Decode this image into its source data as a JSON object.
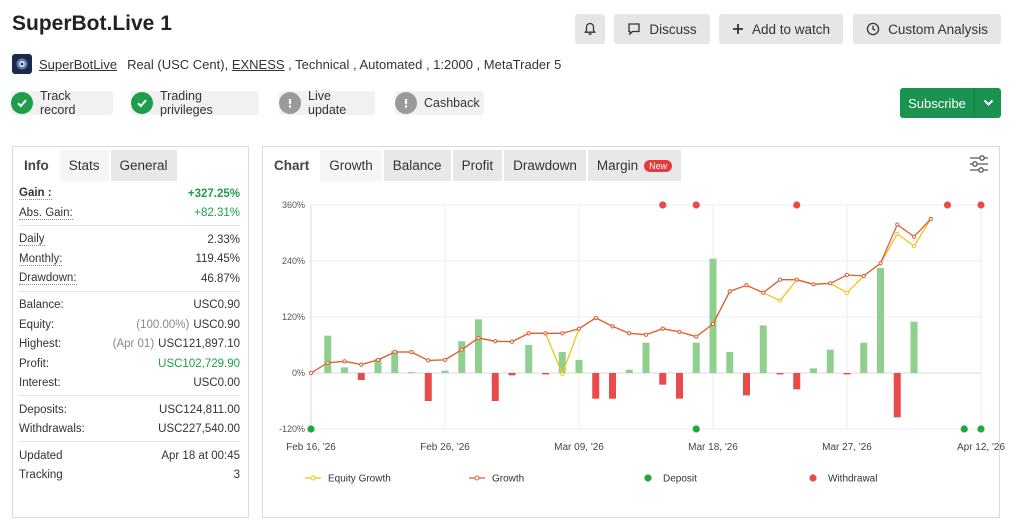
{
  "header": {
    "title": "SuperBot.Live 1",
    "discuss": "Discuss",
    "add_watch": "Add to watch",
    "custom_analysis": "Custom Analysis"
  },
  "meta": {
    "author": "SuperBotLive",
    "pre_broker": "Real (USC Cent), ",
    "broker": "EXNESS",
    "post_broker": " , Technical , Automated , 1:2000 , MetaTrader 5"
  },
  "badges": [
    "Track record",
    "Trading privileges",
    "Live update",
    "Cashback"
  ],
  "subscribe": "Subscribe",
  "left_tabs": [
    "Info",
    "Stats",
    "General"
  ],
  "stats": {
    "groups": [
      [
        {
          "k": "Gain :",
          "v": "+327.25%",
          "bold": true,
          "green": true,
          "u": true
        },
        {
          "k": "Abs. Gain:",
          "v": "+82.31%",
          "green": true,
          "u": true
        }
      ],
      [
        {
          "k": "Daily",
          "v": "2.33%",
          "u": true
        },
        {
          "k": "Monthly:",
          "v": "119.45%",
          "u": true
        },
        {
          "k": "Drawdown:",
          "v": "46.87%",
          "u": true
        }
      ],
      [
        {
          "k": "Balance:",
          "v": "USC0.90"
        },
        {
          "k": "Equity:",
          "sub": "(100.00%)",
          "v": "USC0.90"
        },
        {
          "k": "Highest:",
          "sub": "(Apr 01)",
          "v": "USC121,897.10"
        },
        {
          "k": "Profit:",
          "v": "USC102,729.90",
          "green": true
        },
        {
          "k": "Interest:",
          "v": "USC0.00"
        }
      ],
      [
        {
          "k": "Deposits:",
          "v": "USC124,811.00"
        },
        {
          "k": "Withdrawals:",
          "v": "USC227,540.00"
        }
      ],
      [
        {
          "k": "Updated",
          "v": "Apr 18 at 00:45"
        },
        {
          "k": "Tracking",
          "v": "3"
        }
      ]
    ]
  },
  "chart_tabs": {
    "label": "Chart",
    "tabs": [
      "Growth",
      "Balance",
      "Profit",
      "Drawdown",
      "Margin"
    ],
    "new_badge": "New"
  },
  "colors": {
    "growth": "#d9603b",
    "equity": "#f0c419",
    "bar_pos": "#8fd08f",
    "bar_neg": "#e94b4b",
    "deposit": "#1eaa3a",
    "withdrawal": "#e94b4b"
  },
  "chart_data": {
    "type": "line",
    "y_ticks": [
      "360%",
      "240%",
      "120%",
      "0%",
      "-120%"
    ],
    "y_tick_values": [
      360,
      240,
      120,
      0,
      -120
    ],
    "ylim": [
      -120,
      360
    ],
    "x_ticks": [
      "Feb 16, '26",
      "Feb 26, '26",
      "Mar 09, '26",
      "Mar 18, '26",
      "Mar 27, '26",
      "Apr 12, '26"
    ],
    "x_tick_pos": [
      0,
      8,
      16,
      24,
      32,
      40
    ],
    "x_range": [
      0,
      40
    ],
    "series": [
      {
        "name": "Growth",
        "values": [
          {
            "x": 0,
            "y": 0
          },
          {
            "x": 1,
            "y": 22
          },
          {
            "x": 2,
            "y": 25
          },
          {
            "x": 3,
            "y": 18
          },
          {
            "x": 4,
            "y": 28
          },
          {
            "x": 5,
            "y": 45
          },
          {
            "x": 6,
            "y": 45
          },
          {
            "x": 7,
            "y": 27
          },
          {
            "x": 8,
            "y": 28
          },
          {
            "x": 9,
            "y": 50
          },
          {
            "x": 10,
            "y": 75
          },
          {
            "x": 11,
            "y": 68
          },
          {
            "x": 12,
            "y": 67
          },
          {
            "x": 13,
            "y": 85
          },
          {
            "x": 14,
            "y": 85
          },
          {
            "x": 15,
            "y": 85
          },
          {
            "x": 16,
            "y": 95
          },
          {
            "x": 17,
            "y": 118
          },
          {
            "x": 18,
            "y": 100
          },
          {
            "x": 19,
            "y": 85
          },
          {
            "x": 20,
            "y": 82
          },
          {
            "x": 21,
            "y": 95
          },
          {
            "x": 22,
            "y": 88
          },
          {
            "x": 23,
            "y": 78
          },
          {
            "x": 24,
            "y": 105
          },
          {
            "x": 25,
            "y": 175
          },
          {
            "x": 26,
            "y": 188
          },
          {
            "x": 27,
            "y": 172
          },
          {
            "x": 28,
            "y": 200
          },
          {
            "x": 29,
            "y": 200
          },
          {
            "x": 30,
            "y": 190
          },
          {
            "x": 31,
            "y": 192
          },
          {
            "x": 32,
            "y": 210
          },
          {
            "x": 33,
            "y": 208
          },
          {
            "x": 34,
            "y": 235
          },
          {
            "x": 35,
            "y": 318
          },
          {
            "x": 36,
            "y": 292
          },
          {
            "x": 37,
            "y": 330
          }
        ]
      },
      {
        "name": "Equity Growth",
        "values": [
          {
            "x": 0,
            "y": 0
          },
          {
            "x": 1,
            "y": 22
          },
          {
            "x": 2,
            "y": 25
          },
          {
            "x": 3,
            "y": 18
          },
          {
            "x": 4,
            "y": 28
          },
          {
            "x": 5,
            "y": 45
          },
          {
            "x": 6,
            "y": 45
          },
          {
            "x": 7,
            "y": 27
          },
          {
            "x": 8,
            "y": 28
          },
          {
            "x": 9,
            "y": 50
          },
          {
            "x": 10,
            "y": 75
          },
          {
            "x": 11,
            "y": 68
          },
          {
            "x": 12,
            "y": 67
          },
          {
            "x": 13,
            "y": 85
          },
          {
            "x": 14,
            "y": 85
          },
          {
            "x": 15,
            "y": -2
          },
          {
            "x": 16,
            "y": 95
          },
          {
            "x": 17,
            "y": 118
          },
          {
            "x": 18,
            "y": 100
          },
          {
            "x": 19,
            "y": 85
          },
          {
            "x": 20,
            "y": 82
          },
          {
            "x": 21,
            "y": 95
          },
          {
            "x": 22,
            "y": 88
          },
          {
            "x": 23,
            "y": 78
          },
          {
            "x": 24,
            "y": 105
          },
          {
            "x": 25,
            "y": 175
          },
          {
            "x": 26,
            "y": 188
          },
          {
            "x": 27,
            "y": 172
          },
          {
            "x": 28,
            "y": 155
          },
          {
            "x": 29,
            "y": 200
          },
          {
            "x": 30,
            "y": 190
          },
          {
            "x": 31,
            "y": 192
          },
          {
            "x": 32,
            "y": 172
          },
          {
            "x": 33,
            "y": 208
          },
          {
            "x": 34,
            "y": 235
          },
          {
            "x": 35,
            "y": 298
          },
          {
            "x": 36,
            "y": 272
          },
          {
            "x": 37,
            "y": 330
          }
        ]
      }
    ],
    "bars": [
      {
        "x": 1,
        "y": 80
      },
      {
        "x": 2,
        "y": 12
      },
      {
        "x": 3,
        "y": -15
      },
      {
        "x": 4,
        "y": 30
      },
      {
        "x": 5,
        "y": 48
      },
      {
        "x": 6,
        "y": 2
      },
      {
        "x": 7,
        "y": -60
      },
      {
        "x": 8,
        "y": 5
      },
      {
        "x": 9,
        "y": 68
      },
      {
        "x": 10,
        "y": 115
      },
      {
        "x": 11,
        "y": -60
      },
      {
        "x": 12,
        "y": -5
      },
      {
        "x": 13,
        "y": 60
      },
      {
        "x": 14,
        "y": -3
      },
      {
        "x": 15,
        "y": 45
      },
      {
        "x": 16,
        "y": 28
      },
      {
        "x": 17,
        "y": -55
      },
      {
        "x": 18,
        "y": -55
      },
      {
        "x": 19,
        "y": 7
      },
      {
        "x": 20,
        "y": 65
      },
      {
        "x": 21,
        "y": -25
      },
      {
        "x": 22,
        "y": -55
      },
      {
        "x": 23,
        "y": 65
      },
      {
        "x": 24,
        "y": 245
      },
      {
        "x": 25,
        "y": 45
      },
      {
        "x": 26,
        "y": -48
      },
      {
        "x": 27,
        "y": 102
      },
      {
        "x": 28,
        "y": -3
      },
      {
        "x": 29,
        "y": -35
      },
      {
        "x": 30,
        "y": 10
      },
      {
        "x": 31,
        "y": 50
      },
      {
        "x": 32,
        "y": -3
      },
      {
        "x": 33,
        "y": 65
      },
      {
        "x": 34,
        "y": 225
      },
      {
        "x": 35,
        "y": -95
      },
      {
        "x": 36,
        "y": 110
      }
    ],
    "deposits": [
      0,
      23,
      39,
      40
    ],
    "withdrawals": [
      21,
      23,
      29,
      38,
      40
    ],
    "legend": [
      "Equity Growth",
      "Growth",
      "Deposit",
      "Withdrawal"
    ],
    "legend_position": "bottom",
    "grid": true
  }
}
